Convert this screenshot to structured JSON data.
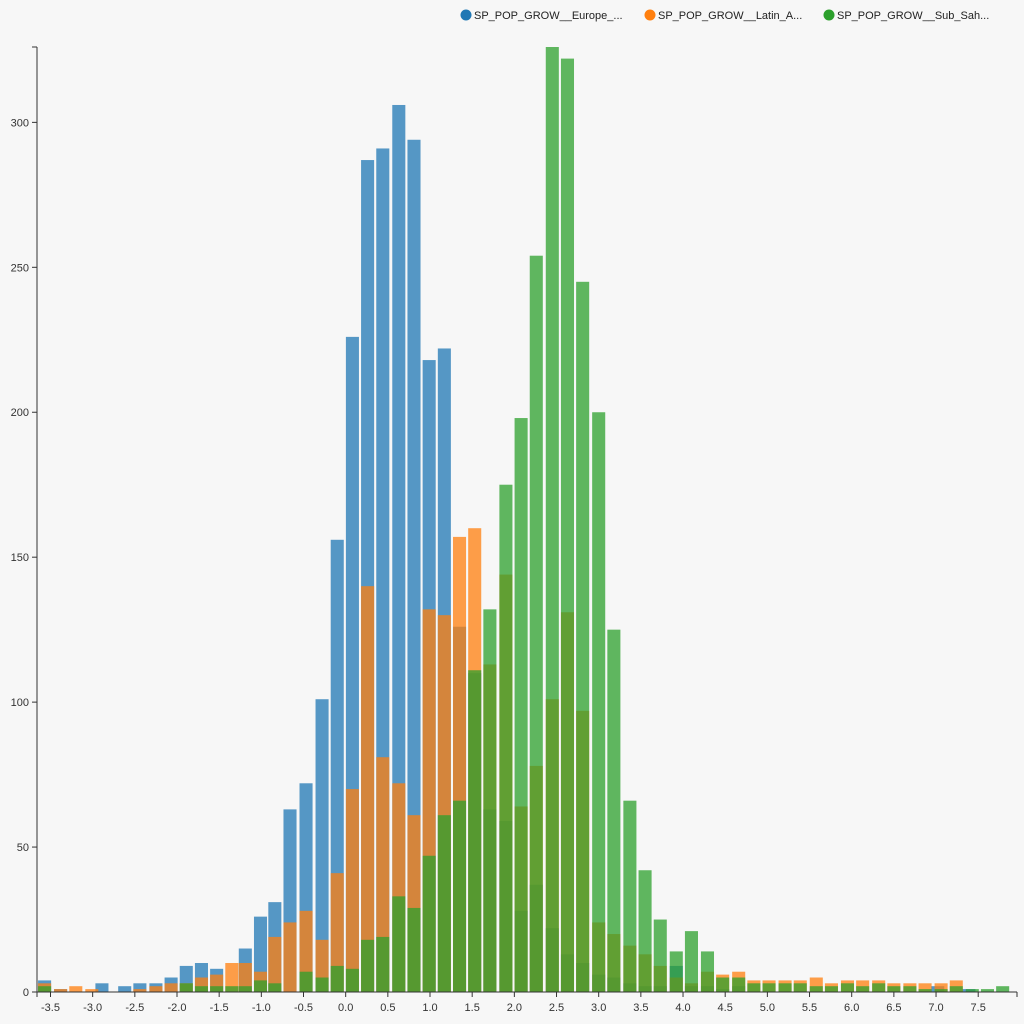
{
  "chart_data": {
    "type": "bar",
    "title": "",
    "xlabel": "",
    "ylabel": "",
    "xlim": [
      -3.66,
      7.96
    ],
    "ylim": [
      0,
      326
    ],
    "bin_width": 0.18,
    "x_ticks": [
      -3.5,
      -3.0,
      -2.5,
      -2.0,
      -1.5,
      -1.0,
      -0.5,
      0.0,
      0.5,
      1.0,
      1.5,
      2.0,
      2.5,
      3.0,
      3.5,
      4.0,
      4.5,
      5.0,
      5.5,
      6.0,
      6.5,
      7.0,
      7.5
    ],
    "x_tick_labels": [
      "-3.5",
      "-3.0",
      "-2.5",
      "-2.0",
      "-1.5",
      "-1.0",
      "-0.5",
      "0.0",
      "0.5",
      "1.0",
      "1.5",
      "2.0",
      "2.5",
      "3.0",
      "3.5",
      "4.0",
      "4.5",
      "5.0",
      "5.5",
      "6.0",
      "6.5",
      "7.0",
      "7.5"
    ],
    "y_ticks": [
      0,
      50,
      100,
      150,
      200,
      250,
      300
    ],
    "y_tick_labels": [
      "0",
      "50",
      "100",
      "150",
      "200",
      "250",
      "300"
    ],
    "legend_position": "top-right",
    "grid": false,
    "series": [
      {
        "name": "SP_POP_GROW__Europe_...",
        "color": "#1f77b4",
        "opacity": 0.75,
        "bins": [
          [
            -3.57,
            4
          ],
          [
            -3.38,
            1
          ],
          [
            -2.89,
            3
          ],
          [
            -2.62,
            2
          ],
          [
            -2.44,
            3
          ],
          [
            -2.25,
            3
          ],
          [
            -2.07,
            5
          ],
          [
            -1.89,
            9
          ],
          [
            -1.71,
            10
          ],
          [
            -1.53,
            8
          ],
          [
            -1.19,
            15
          ],
          [
            -1.01,
            26
          ],
          [
            -0.84,
            31
          ],
          [
            -0.66,
            63
          ],
          [
            -0.47,
            72
          ],
          [
            -0.28,
            101
          ],
          [
            -0.1,
            156
          ],
          [
            0.08,
            226
          ],
          [
            0.26,
            287
          ],
          [
            0.44,
            291
          ],
          [
            0.63,
            306
          ],
          [
            0.81,
            294
          ],
          [
            0.99,
            218
          ],
          [
            1.17,
            222
          ],
          [
            1.35,
            126
          ],
          [
            1.53,
            110
          ],
          [
            1.71,
            63
          ],
          [
            1.9,
            59
          ],
          [
            2.08,
            28
          ],
          [
            2.26,
            37
          ],
          [
            2.45,
            22
          ],
          [
            2.63,
            13
          ],
          [
            2.81,
            10
          ],
          [
            3.0,
            6
          ],
          [
            3.18,
            5
          ],
          [
            3.37,
            3
          ],
          [
            3.55,
            2
          ],
          [
            3.73,
            2
          ],
          [
            3.92,
            9
          ],
          [
            4.1,
            2
          ],
          [
            4.29,
            2
          ],
          [
            4.47,
            1
          ],
          [
            4.66,
            2
          ],
          [
            7.02,
            2
          ],
          [
            7.39,
            1
          ]
        ]
      },
      {
        "name": "SP_POP_GROW__Latin_A...",
        "color": "#ff7f0e",
        "opacity": 0.75,
        "bins": [
          [
            -3.57,
            3
          ],
          [
            -3.38,
            1
          ],
          [
            -3.2,
            2
          ],
          [
            -3.01,
            1
          ],
          [
            -2.44,
            1
          ],
          [
            -2.25,
            2
          ],
          [
            -2.07,
            3
          ],
          [
            -1.89,
            3
          ],
          [
            -1.71,
            5
          ],
          [
            -1.53,
            6
          ],
          [
            -1.35,
            10
          ],
          [
            -1.19,
            10
          ],
          [
            -1.01,
            7
          ],
          [
            -0.84,
            19
          ],
          [
            -0.66,
            24
          ],
          [
            -0.47,
            28
          ],
          [
            -0.28,
            18
          ],
          [
            -0.1,
            41
          ],
          [
            0.08,
            70
          ],
          [
            0.26,
            140
          ],
          [
            0.44,
            81
          ],
          [
            0.63,
            72
          ],
          [
            0.81,
            61
          ],
          [
            0.99,
            132
          ],
          [
            1.17,
            130
          ],
          [
            1.35,
            157
          ],
          [
            1.53,
            160
          ],
          [
            1.71,
            113
          ],
          [
            1.9,
            144
          ],
          [
            2.08,
            64
          ],
          [
            2.26,
            78
          ],
          [
            2.45,
            101
          ],
          [
            2.63,
            131
          ],
          [
            2.81,
            97
          ],
          [
            3.0,
            24
          ],
          [
            3.18,
            20
          ],
          [
            3.37,
            16
          ],
          [
            3.55,
            13
          ],
          [
            3.73,
            9
          ],
          [
            3.92,
            5
          ],
          [
            4.1,
            3
          ],
          [
            4.29,
            7
          ],
          [
            4.47,
            6
          ],
          [
            4.66,
            7
          ],
          [
            4.84,
            4
          ],
          [
            5.02,
            4
          ],
          [
            5.21,
            4
          ],
          [
            5.39,
            4
          ],
          [
            5.58,
            5
          ],
          [
            5.76,
            3
          ],
          [
            5.95,
            4
          ],
          [
            6.13,
            4
          ],
          [
            6.32,
            4
          ],
          [
            6.5,
            3
          ],
          [
            6.69,
            3
          ],
          [
            6.87,
            3
          ],
          [
            7.06,
            3
          ],
          [
            7.24,
            4
          ]
        ]
      },
      {
        "name": "SP_POP_GROW__Sub_Sah...",
        "color": "#2ca02c",
        "opacity": 0.75,
        "bins": [
          [
            -3.57,
            2
          ],
          [
            -1.89,
            3
          ],
          [
            -1.71,
            2
          ],
          [
            -1.53,
            2
          ],
          [
            -1.35,
            2
          ],
          [
            -1.19,
            2
          ],
          [
            -1.01,
            4
          ],
          [
            -0.84,
            3
          ],
          [
            -0.47,
            7
          ],
          [
            -0.28,
            5
          ],
          [
            -0.1,
            9
          ],
          [
            0.08,
            8
          ],
          [
            0.26,
            18
          ],
          [
            0.44,
            19
          ],
          [
            0.63,
            33
          ],
          [
            0.81,
            29
          ],
          [
            0.99,
            47
          ],
          [
            1.17,
            61
          ],
          [
            1.35,
            66
          ],
          [
            1.53,
            111
          ],
          [
            1.71,
            132
          ],
          [
            1.9,
            175
          ],
          [
            2.08,
            198
          ],
          [
            2.26,
            254
          ],
          [
            2.45,
            326
          ],
          [
            2.63,
            322
          ],
          [
            2.81,
            245
          ],
          [
            3.0,
            200
          ],
          [
            3.18,
            125
          ],
          [
            3.37,
            66
          ],
          [
            3.55,
            42
          ],
          [
            3.73,
            25
          ],
          [
            3.92,
            14
          ],
          [
            4.1,
            21
          ],
          [
            4.29,
            14
          ],
          [
            4.47,
            5
          ],
          [
            4.66,
            5
          ],
          [
            4.84,
            3
          ],
          [
            5.02,
            3
          ],
          [
            5.21,
            3
          ],
          [
            5.39,
            3
          ],
          [
            5.58,
            2
          ],
          [
            5.76,
            2
          ],
          [
            5.95,
            3
          ],
          [
            6.13,
            2
          ],
          [
            6.32,
            3
          ],
          [
            6.5,
            2
          ],
          [
            6.69,
            2
          ],
          [
            6.87,
            1
          ],
          [
            7.06,
            1
          ],
          [
            7.24,
            2
          ],
          [
            7.43,
            1
          ],
          [
            7.61,
            1
          ],
          [
            7.79,
            2
          ]
        ]
      }
    ]
  }
}
